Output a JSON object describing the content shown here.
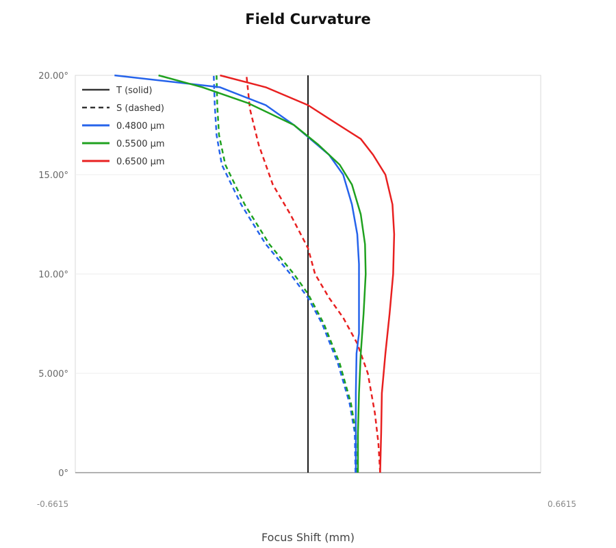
{
  "chart_data": {
    "type": "line",
    "title": "Field Curvature",
    "xlabel": "Focus Shift (mm)",
    "ylabel": "",
    "xlim": [
      -0.6615,
      0.6615
    ],
    "ylim": [
      0,
      20
    ],
    "x_tick_labels": [
      "-0.6615",
      "0.6615"
    ],
    "y_tick_labels": [
      "0°",
      "5.000°",
      "10.00°",
      "15.00°",
      "20.00°"
    ],
    "y_ticks": [
      0,
      5,
      10,
      15,
      20
    ],
    "grid": true,
    "legend_position": "top-left",
    "legend": [
      {
        "label": "T (solid)",
        "style": "solid",
        "color": "#333333"
      },
      {
        "label": "S (dashed)",
        "style": "dashed",
        "color": "#333333"
      },
      {
        "label": "0.4800 µm",
        "style": "solid",
        "color": "#2563eb"
      },
      {
        "label": "0.5500 µm",
        "style": "solid",
        "color": "#1fa11f"
      },
      {
        "label": "0.6500 µm",
        "style": "solid",
        "color": "#e82020"
      }
    ],
    "series": [
      {
        "wavelength": "0.4800 µm",
        "kind": "T",
        "color": "#2563eb",
        "points": [
          [
            0.136,
            0
          ],
          [
            0.136,
            2
          ],
          [
            0.136,
            4
          ],
          [
            0.138,
            6
          ],
          [
            0.145,
            7
          ],
          [
            0.145,
            9
          ],
          [
            0.145,
            10.5
          ],
          [
            0.14,
            12
          ],
          [
            0.125,
            13.5
          ],
          [
            0.1,
            15
          ],
          [
            0.06,
            16
          ],
          [
            -0.04,
            17.5
          ],
          [
            -0.12,
            18.5
          ],
          [
            -0.25,
            19.4
          ],
          [
            -0.55,
            20
          ]
        ]
      },
      {
        "wavelength": "0.5500 µm",
        "kind": "T",
        "color": "#1fa11f",
        "points": [
          [
            0.142,
            0
          ],
          [
            0.142,
            2
          ],
          [
            0.145,
            4
          ],
          [
            0.15,
            6
          ],
          [
            0.158,
            8
          ],
          [
            0.164,
            10
          ],
          [
            0.162,
            11.5
          ],
          [
            0.15,
            13
          ],
          [
            0.125,
            14.5
          ],
          [
            0.09,
            15.5
          ],
          [
            0.03,
            16.5
          ],
          [
            -0.04,
            17.5
          ],
          [
            -0.17,
            18.6
          ],
          [
            -0.3,
            19.4
          ],
          [
            -0.425,
            20
          ]
        ]
      },
      {
        "wavelength": "0.6500 µm",
        "kind": "T",
        "color": "#e82020",
        "points": [
          [
            0.205,
            0
          ],
          [
            0.208,
            2
          ],
          [
            0.21,
            4
          ],
          [
            0.22,
            6
          ],
          [
            0.232,
            8
          ],
          [
            0.242,
            10
          ],
          [
            0.245,
            12
          ],
          [
            0.24,
            13.5
          ],
          [
            0.22,
            15
          ],
          [
            0.185,
            16
          ],
          [
            0.15,
            16.8
          ],
          [
            0.07,
            17.7
          ],
          [
            0.0,
            18.5
          ],
          [
            -0.12,
            19.4
          ],
          [
            -0.25,
            20
          ]
        ]
      },
      {
        "wavelength": "0.4800 µm",
        "kind": "S",
        "color": "#2563eb",
        "points": [
          [
            0.135,
            0
          ],
          [
            0.133,
            2
          ],
          [
            0.118,
            3.5
          ],
          [
            0.085,
            5.5
          ],
          [
            0.04,
            7.5
          ],
          [
            0.0,
            8.8
          ],
          [
            -0.05,
            10
          ],
          [
            -0.12,
            11.5
          ],
          [
            -0.19,
            13.5
          ],
          [
            -0.245,
            15.5
          ],
          [
            -0.26,
            17
          ],
          [
            -0.265,
            18.5
          ],
          [
            -0.268,
            20
          ]
        ]
      },
      {
        "wavelength": "0.5500 µm",
        "kind": "S",
        "color": "#1fa11f",
        "points": [
          [
            0.138,
            0
          ],
          [
            0.136,
            2
          ],
          [
            0.122,
            3.5
          ],
          [
            0.09,
            5.5
          ],
          [
            0.045,
            7.5
          ],
          [
            0.0,
            9
          ],
          [
            -0.04,
            10
          ],
          [
            -0.11,
            11.5
          ],
          [
            -0.18,
            13.5
          ],
          [
            -0.235,
            15.5
          ],
          [
            -0.253,
            17
          ],
          [
            -0.258,
            18.5
          ],
          [
            -0.26,
            20
          ]
        ]
      },
      {
        "wavelength": "0.6500 µm",
        "kind": "S",
        "color": "#e82020",
        "points": [
          [
            0.205,
            0
          ],
          [
            0.2,
            1.5
          ],
          [
            0.19,
            3
          ],
          [
            0.17,
            5
          ],
          [
            0.14,
            6.5
          ],
          [
            0.1,
            7.8
          ],
          [
            0.06,
            8.8
          ],
          [
            0.02,
            10
          ],
          [
            0.0,
            11.3
          ],
          [
            -0.05,
            13
          ],
          [
            -0.1,
            14.5
          ],
          [
            -0.14,
            16.5
          ],
          [
            -0.165,
            18.3
          ],
          [
            -0.175,
            20
          ]
        ]
      }
    ]
  }
}
